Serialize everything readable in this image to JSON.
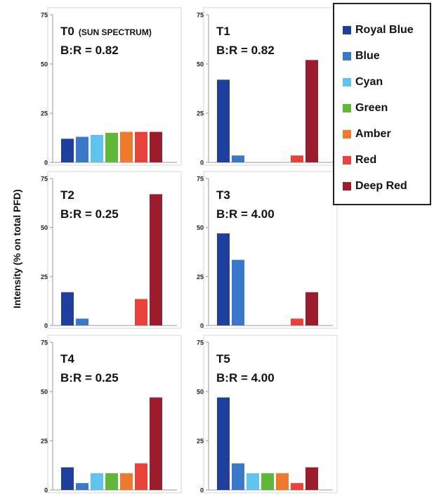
{
  "ylabel": "Intensity (% on total PFD)",
  "legend": [
    {
      "name": "Royal Blue",
      "color": "#1f3f9e"
    },
    {
      "name": "Blue",
      "color": "#3a78c9"
    },
    {
      "name": "Cyan",
      "color": "#5ec4ee"
    },
    {
      "name": "Green",
      "color": "#5fb83a"
    },
    {
      "name": "Amber",
      "color": "#f07a2c"
    },
    {
      "name": "Red",
      "color": "#e8433b"
    },
    {
      "name": "Deep Red",
      "color": "#9c1c2c"
    }
  ],
  "chart_data": [
    {
      "type": "bar",
      "title": "T0",
      "title_note": "(SUN SPECTRUM)",
      "subtitle": "B:R = 0.82",
      "categories": [
        "Royal Blue",
        "Blue",
        "Cyan",
        "Green",
        "Amber",
        "Red",
        "Deep Red"
      ],
      "values": [
        12,
        13,
        14,
        15,
        15.5,
        15.5,
        15.5
      ],
      "ylim": [
        0,
        75
      ],
      "yticks": [
        0,
        25,
        50,
        75
      ]
    },
    {
      "type": "bar",
      "title": "T1",
      "title_note": "",
      "subtitle": "B:R = 0.82",
      "categories": [
        "Royal Blue",
        "Blue",
        "Cyan",
        "Green",
        "Amber",
        "Red",
        "Deep Red"
      ],
      "values": [
        42,
        3.5,
        0,
        0,
        0,
        3.5,
        52
      ],
      "ylim": [
        0,
        75
      ],
      "yticks": [
        0,
        25,
        50,
        75
      ]
    },
    {
      "type": "bar",
      "title": "T2",
      "title_note": "",
      "subtitle": "B:R = 0.25",
      "categories": [
        "Royal Blue",
        "Blue",
        "Cyan",
        "Green",
        "Amber",
        "Red",
        "Deep Red"
      ],
      "values": [
        17,
        3.5,
        0,
        0,
        0,
        13.5,
        67
      ],
      "ylim": [
        0,
        75
      ],
      "yticks": [
        0,
        25,
        50,
        75
      ]
    },
    {
      "type": "bar",
      "title": "T3",
      "title_note": "",
      "subtitle": "B:R = 4.00",
      "categories": [
        "Royal Blue",
        "Blue",
        "Cyan",
        "Green",
        "Amber",
        "Red",
        "Deep Red"
      ],
      "values": [
        47,
        33.5,
        0,
        0,
        0,
        3.5,
        17
      ],
      "ylim": [
        0,
        75
      ],
      "yticks": [
        0,
        25,
        50,
        75
      ]
    },
    {
      "type": "bar",
      "title": "T4",
      "title_note": "",
      "subtitle": "B:R = 0.25",
      "categories": [
        "Royal Blue",
        "Blue",
        "Cyan",
        "Green",
        "Amber",
        "Red",
        "Deep Red"
      ],
      "values": [
        11.5,
        3.5,
        8.5,
        8.5,
        8.5,
        13.5,
        47
      ],
      "ylim": [
        0,
        75
      ],
      "yticks": [
        0,
        25,
        50,
        75
      ]
    },
    {
      "type": "bar",
      "title": "T5",
      "title_note": "",
      "subtitle": "B:R = 4.00",
      "categories": [
        "Royal Blue",
        "Blue",
        "Cyan",
        "Green",
        "Amber",
        "Red",
        "Deep Red"
      ],
      "values": [
        47,
        13.5,
        8.5,
        8.5,
        8.5,
        3.5,
        11.5
      ],
      "ylim": [
        0,
        75
      ],
      "yticks": [
        0,
        25,
        50,
        75
      ]
    }
  ]
}
